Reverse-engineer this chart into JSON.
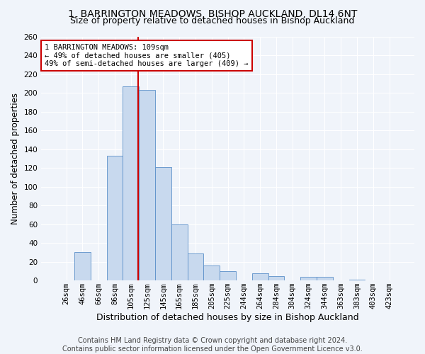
{
  "title": "1, BARRINGTON MEADOWS, BISHOP AUCKLAND, DL14 6NT",
  "subtitle": "Size of property relative to detached houses in Bishop Auckland",
  "xlabel": "Distribution of detached houses by size in Bishop Auckland",
  "ylabel": "Number of detached properties",
  "bar_labels": [
    "26sqm",
    "46sqm",
    "66sqm",
    "86sqm",
    "105sqm",
    "125sqm",
    "145sqm",
    "165sqm",
    "185sqm",
    "205sqm",
    "225sqm",
    "244sqm",
    "264sqm",
    "284sqm",
    "304sqm",
    "324sqm",
    "344sqm",
    "363sqm",
    "383sqm",
    "403sqm",
    "423sqm"
  ],
  "bar_heights": [
    0,
    30,
    0,
    133,
    207,
    203,
    121,
    60,
    29,
    16,
    10,
    0,
    8,
    5,
    0,
    4,
    4,
    0,
    1,
    0,
    0
  ],
  "bar_color": "#c8d9ee",
  "bar_edge_color": "#5b8fc9",
  "vline_color": "#cc0000",
  "annotation_title": "1 BARRINGTON MEADOWS: 109sqm",
  "annotation_line1": "← 49% of detached houses are smaller (405)",
  "annotation_line2": "49% of semi-detached houses are larger (409) →",
  "annotation_box_facecolor": "#ffffff",
  "annotation_box_edgecolor": "#cc0000",
  "ylim": [
    0,
    260
  ],
  "yticks": [
    0,
    20,
    40,
    60,
    80,
    100,
    120,
    140,
    160,
    180,
    200,
    220,
    240,
    260
  ],
  "footer_line1": "Contains HM Land Registry data © Crown copyright and database right 2024.",
  "footer_line2": "Contains public sector information licensed under the Open Government Licence v3.0.",
  "bg_color": "#f0f4fa",
  "plot_bg_color": "#f0f4fa",
  "title_fontsize": 10,
  "subtitle_fontsize": 9,
  "xlabel_fontsize": 9,
  "ylabel_fontsize": 8.5,
  "tick_fontsize": 7.5,
  "annotation_fontsize": 7.5,
  "footer_fontsize": 7
}
